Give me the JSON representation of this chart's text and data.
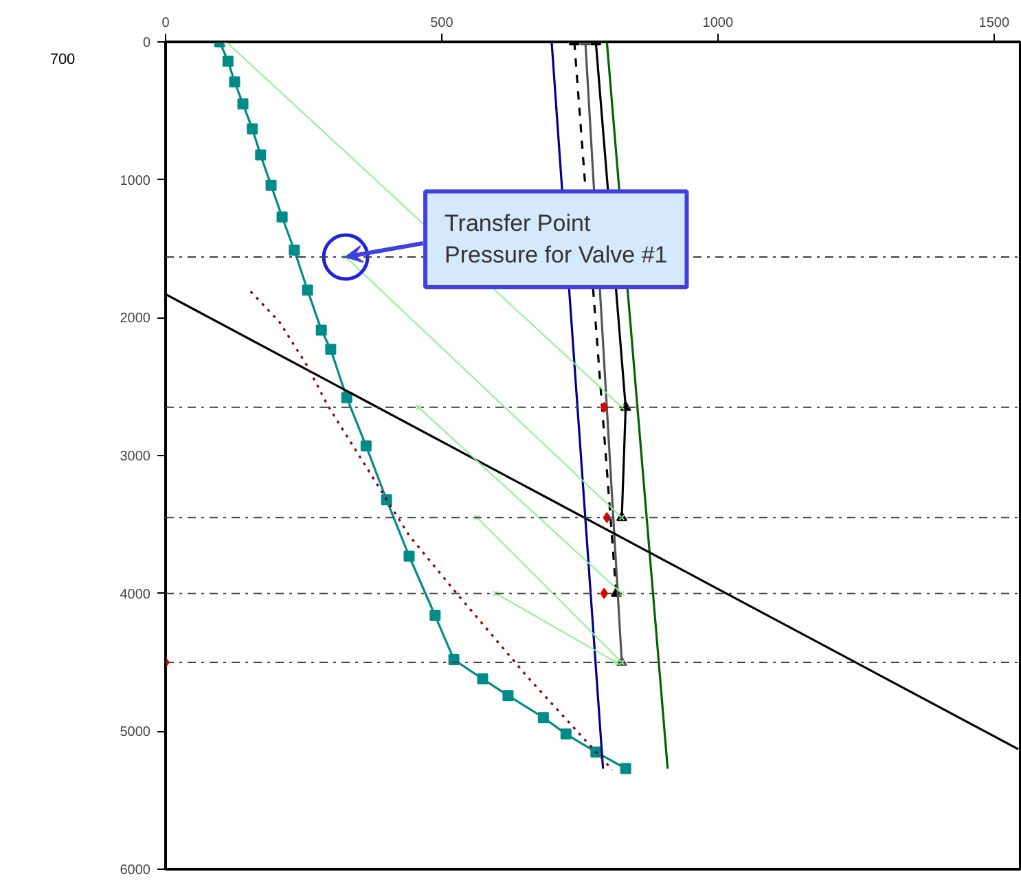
{
  "chart_data": {
    "type": "line",
    "xlim": [
      0,
      1550
    ],
    "ylim": [
      6000,
      0
    ],
    "xticks": [
      0,
      500,
      1000,
      1500
    ],
    "yticks": [
      0,
      1000,
      2000,
      3000,
      4000,
      5000,
      6000
    ],
    "grid": false,
    "series": [
      {
        "color": "#008b8b",
        "marker": "square",
        "line_style": "solid",
        "x": [
          98,
          113,
          125,
          140,
          157,
          172,
          191,
          211,
          233,
          257,
          282,
          299,
          328,
          363,
          400,
          441,
          488,
          522,
          574,
          620,
          684,
          725,
          779,
          833
        ],
        "values": [
          0,
          140,
          290,
          450,
          630,
          820,
          1040,
          1270,
          1510,
          1800,
          2090,
          2230,
          2580,
          2930,
          3320,
          3730,
          4160,
          4480,
          4620,
          4740,
          4900,
          5020,
          5150,
          5270
        ]
      },
      {
        "color": "#00008b",
        "marker": "none",
        "line_style": "solid",
        "x": [
          699,
          792
        ],
        "values": [
          0,
          5270
        ]
      },
      {
        "color": "#000000",
        "marker": "triangle",
        "line_style": "dashed",
        "x": [
          740,
          816
        ],
        "values": [
          0,
          4000
        ]
      },
      {
        "color": "#555555",
        "marker": "triangle",
        "line_style": "solid",
        "x": [
          760,
          826
        ],
        "values": [
          0,
          4500
        ]
      },
      {
        "color": "#000000",
        "marker": "triangle",
        "line_style": "solid",
        "x": [
          779,
          833,
          826
        ],
        "values": [
          0,
          2650,
          3450
        ]
      },
      {
        "color": "#006400",
        "marker": "none",
        "line_style": "solid",
        "x": [
          799,
          909
        ],
        "values": [
          0,
          5270
        ]
      },
      {
        "color": "#000000",
        "marker": "none",
        "line_style": "solid",
        "x": [
          0,
          1544
        ],
        "values": [
          1830,
          5130
        ]
      },
      {
        "color": "#8b0000",
        "marker": "none",
        "line_style": "dotted",
        "x": [
          154,
          206,
          255,
          294,
          441,
          525,
          654,
          809
        ],
        "values": [
          1810,
          2030,
          2340,
          2640,
          3580,
          3990,
          4600,
          5280
        ]
      },
      {
        "color": "#90ee90",
        "marker": "cross",
        "line_style": "solid",
        "x": [
          110,
          826
        ],
        "values": [
          0,
          2650
        ]
      },
      {
        "color": "#90ee90",
        "marker": "cross",
        "line_style": "solid",
        "x": [
          326,
          826
        ],
        "values": [
          1560,
          3450
        ]
      },
      {
        "color": "#90ee90",
        "marker": "cross",
        "line_style": "solid",
        "x": [
          458,
          826
        ],
        "values": [
          2650,
          4000
        ]
      },
      {
        "color": "#90ee90",
        "marker": "cross",
        "line_style": "solid",
        "x": [
          564,
          826
        ],
        "values": [
          3450,
          4500
        ]
      },
      {
        "color": "#90ee90",
        "marker": "cross",
        "line_style": "solid",
        "x": [
          598,
          816
        ],
        "values": [
          4000,
          4500
        ]
      },
      {
        "type": "scatter",
        "color": "#e00000",
        "marker": "diamond",
        "x": [
          794,
          799,
          794,
          0
        ],
        "values": [
          2650,
          3450,
          4000,
          4500
        ]
      }
    ],
    "ref_lines": [
      {
        "axis": "y",
        "value": 1560,
        "color": "#404040",
        "line_style": "dashdot"
      },
      {
        "axis": "y",
        "value": 2650,
        "color": "#404040",
        "line_style": "dashdot"
      },
      {
        "axis": "y",
        "value": 3450,
        "color": "#404040",
        "line_style": "dashdot"
      },
      {
        "axis": "y",
        "value": 4000,
        "color": "#404040",
        "line_style": "dashdot"
      },
      {
        "axis": "y",
        "value": 4500,
        "color": "#404040",
        "line_style": "dashdot"
      }
    ],
    "annotations": [
      {
        "text": "Transfer Point\nPressure for Valve #1",
        "x": 326,
        "y": 1560
      },
      "700"
    ]
  }
}
